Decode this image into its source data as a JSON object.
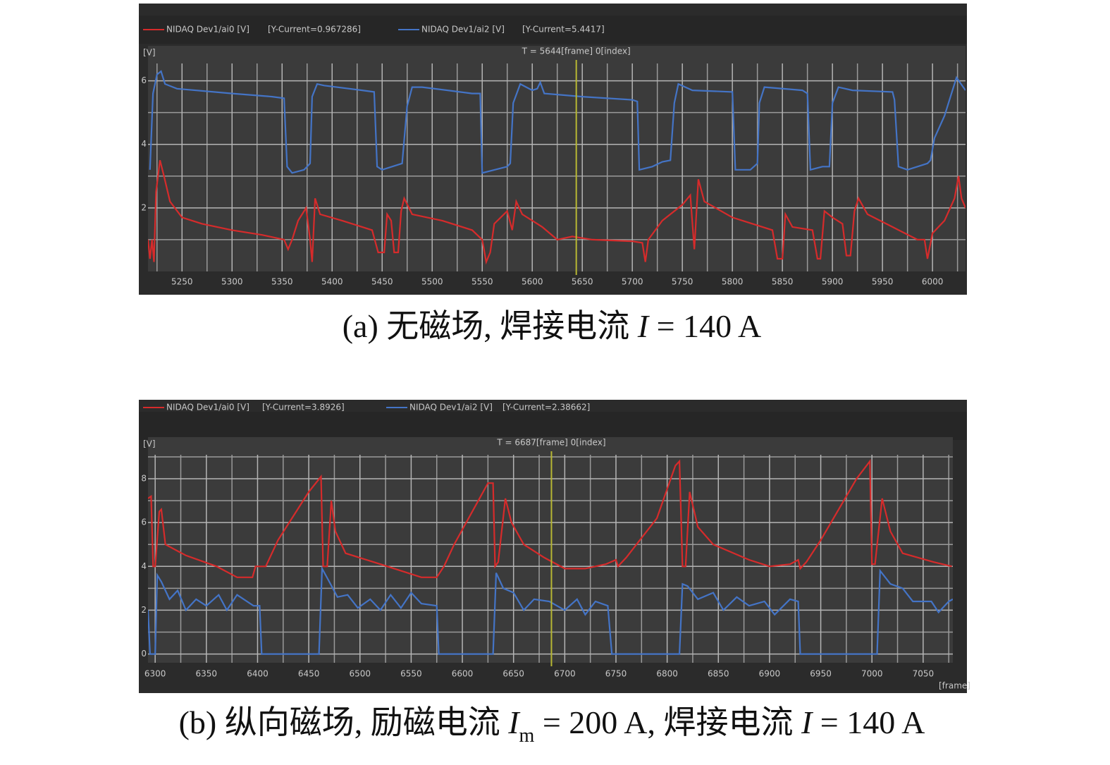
{
  "chart_data": [
    {
      "type": "line",
      "y_label": "[V]",
      "cursor": {
        "x": 5644,
        "label": "T = 5644[frame] 0[index]",
        "color": "#b7b733"
      },
      "xlim": [
        5216,
        6033
      ],
      "ylim": [
        0,
        7.1
      ],
      "xticks": [
        5250,
        5300,
        5350,
        5400,
        5450,
        5500,
        5550,
        5600,
        5650,
        5700,
        5750,
        5800,
        5850,
        5900,
        5950,
        6000
      ],
      "minor_xticks": [
        5225,
        5275,
        5325,
        5375,
        5425,
        5475,
        5525,
        5575,
        5625,
        5675,
        5725,
        5775,
        5825,
        5875,
        5925,
        5975,
        6025
      ],
      "yticks": [
        2,
        4,
        6
      ],
      "minor_yticks": [
        1,
        3,
        5
      ],
      "grid": true,
      "series": [
        {
          "name": "NIDAQ Dev1/ai0 [V]",
          "readout": "[Y-Current=0.967286]",
          "color": "#d62b2b",
          "x": [
            5216,
            5218,
            5220,
            5222,
            5224,
            5228,
            5232,
            5238,
            5250,
            5270,
            5300,
            5330,
            5352,
            5356,
            5360,
            5366,
            5374,
            5378,
            5380,
            5383,
            5388,
            5410,
            5440,
            5446,
            5452,
            5455,
            5459,
            5462,
            5466,
            5469,
            5472,
            5480,
            5510,
            5540,
            5550,
            5554,
            5558,
            5562,
            5575,
            5580,
            5584,
            5590,
            5610,
            5625,
            5640,
            5660,
            5700,
            5710,
            5713,
            5716,
            5730,
            5750,
            5758,
            5762,
            5766,
            5772,
            5800,
            5840,
            5845,
            5850,
            5853,
            5860,
            5880,
            5885,
            5888,
            5892,
            5900,
            5910,
            5914,
            5918,
            5922,
            5926,
            5935,
            5960,
            5985,
            5992,
            5995,
            6000,
            6012,
            6022,
            6026,
            6029,
            6033
          ],
          "values": [
            1.0,
            0.4,
            1.0,
            0.3,
            2.5,
            3.5,
            3.0,
            2.2,
            1.7,
            1.5,
            1.3,
            1.15,
            1.0,
            0.7,
            1.0,
            1.6,
            2.0,
            1.0,
            0.3,
            2.3,
            1.8,
            1.6,
            1.3,
            0.6,
            0.6,
            1.8,
            1.6,
            0.6,
            0.6,
            1.9,
            2.3,
            1.8,
            1.6,
            1.3,
            1.0,
            0.3,
            0.6,
            1.5,
            1.9,
            1.3,
            2.2,
            1.8,
            1.4,
            1.0,
            1.1,
            1.0,
            0.95,
            0.9,
            0.3,
            1.0,
            1.6,
            2.1,
            2.4,
            0.7,
            2.9,
            2.2,
            1.7,
            1.3,
            0.4,
            0.4,
            1.8,
            1.4,
            1.3,
            0.4,
            0.4,
            1.9,
            1.7,
            1.5,
            0.5,
            0.5,
            1.9,
            2.3,
            1.8,
            1.4,
            1.0,
            1.0,
            0.4,
            1.2,
            1.6,
            2.3,
            3.0,
            2.3,
            2.0
          ]
        },
        {
          "name": "NIDAQ Dev1/ai2 [V]",
          "readout": "[Y-Current=5.4417]",
          "color": "#4474c6",
          "x": [
            5218,
            5221,
            5225,
            5229,
            5233,
            5245,
            5300,
            5340,
            5352,
            5355,
            5360,
            5372,
            5378,
            5380,
            5385,
            5392,
            5430,
            5442,
            5445,
            5450,
            5470,
            5475,
            5480,
            5490,
            5540,
            5548,
            5550,
            5575,
            5578,
            5581,
            5588,
            5600,
            5605,
            5608,
            5612,
            5650,
            5700,
            5705,
            5707,
            5720,
            5730,
            5738,
            5742,
            5746,
            5760,
            5800,
            5803,
            5818,
            5825,
            5827,
            5832,
            5870,
            5875,
            5878,
            5890,
            5897,
            5900,
            5906,
            5920,
            5960,
            5962,
            5966,
            5975,
            5995,
            5998,
            6002,
            6012,
            6020,
            6024,
            6033
          ],
          "values": [
            3.2,
            5.6,
            6.2,
            6.3,
            5.9,
            5.75,
            5.6,
            5.5,
            5.45,
            3.3,
            3.1,
            3.2,
            3.4,
            5.5,
            5.9,
            5.85,
            5.7,
            5.65,
            3.3,
            3.2,
            3.4,
            5.2,
            5.8,
            5.8,
            5.6,
            5.6,
            3.1,
            3.3,
            3.4,
            5.3,
            5.9,
            5.7,
            5.75,
            5.95,
            5.6,
            5.5,
            5.4,
            5.35,
            3.2,
            3.3,
            3.45,
            3.5,
            5.3,
            5.9,
            5.7,
            5.65,
            3.2,
            3.2,
            3.4,
            5.3,
            5.8,
            5.7,
            5.6,
            3.2,
            3.3,
            3.3,
            5.3,
            5.8,
            5.7,
            5.65,
            5.4,
            3.3,
            3.2,
            3.4,
            3.5,
            4.2,
            4.9,
            5.7,
            6.1,
            5.7
          ]
        }
      ],
      "caption": [
        {
          "text": "(a) 无磁场, 焊接电流 "
        },
        {
          "text": "I",
          "italic": true
        },
        {
          "text": " = 140 A"
        }
      ]
    },
    {
      "type": "line",
      "y_label": "[V]",
      "x_label": "[frame]",
      "cursor": {
        "x": 6687,
        "label": "T = 6687[frame] 0[index]",
        "color": "#b7b733"
      },
      "xlim": [
        6293,
        7079
      ],
      "ylim": [
        -0.4,
        9.9
      ],
      "xticks": [
        6300,
        6350,
        6400,
        6450,
        6500,
        6550,
        6600,
        6650,
        6700,
        6750,
        6800,
        6850,
        6900,
        6950,
        7000,
        7050
      ],
      "minor_xticks": [
        6325,
        6375,
        6425,
        6475,
        6525,
        6575,
        6625,
        6675,
        6725,
        6775,
        6825,
        6875,
        6925,
        6975,
        7025,
        7075
      ],
      "yticks": [
        0,
        2,
        4,
        6,
        8
      ],
      "minor_yticks": [
        1,
        3,
        5,
        7,
        9
      ],
      "grid": true,
      "series": [
        {
          "name": "NIDAQ Dev1/ai0 [V]",
          "readout": "[Y-Current=3.8926]",
          "color": "#d62b2b",
          "x": [
            6293,
            6296,
            6298,
            6300,
            6304,
            6306,
            6310,
            6330,
            6360,
            6380,
            6395,
            6398,
            6408,
            6420,
            6450,
            6462,
            6464,
            6468,
            6472,
            6476,
            6486,
            6520,
            6560,
            6575,
            6582,
            6592,
            6625,
            6630,
            6632,
            6635,
            6642,
            6648,
            6660,
            6680,
            6700,
            6720,
            6740,
            6750,
            6752,
            6760,
            6790,
            6808,
            6812,
            6815,
            6818,
            6822,
            6830,
            6845,
            6880,
            6900,
            6920,
            6928,
            6930,
            6936,
            6950,
            6985,
            6998,
            7000,
            7003,
            7010,
            7018,
            7030,
            7060,
            7078
          ],
          "values": [
            7.1,
            7.2,
            4.0,
            4.0,
            6.5,
            6.6,
            5.0,
            4.5,
            4.0,
            3.5,
            3.5,
            4.0,
            4.0,
            5.2,
            7.4,
            8.1,
            4.0,
            4.0,
            7.0,
            5.6,
            4.6,
            4.1,
            3.5,
            3.5,
            4.0,
            5.0,
            7.8,
            7.8,
            4.0,
            4.2,
            7.1,
            6.0,
            5.0,
            4.4,
            3.9,
            3.9,
            4.1,
            4.3,
            4.0,
            4.4,
            6.2,
            8.6,
            8.8,
            4.0,
            4.0,
            7.4,
            5.8,
            5.0,
            4.3,
            4.0,
            4.1,
            4.3,
            3.9,
            4.2,
            5.2,
            8.0,
            8.8,
            4.1,
            4.1,
            7.1,
            5.6,
            4.6,
            4.2,
            4.0
          ]
        },
        {
          "name": "NIDAQ Dev1/ai2 [V]",
          "readout": "[Y-Current=2.38662]",
          "color": "#4474c6",
          "x": [
            6293,
            6295,
            6300,
            6302,
            6306,
            6314,
            6322,
            6330,
            6340,
            6350,
            6362,
            6370,
            6380,
            6396,
            6402,
            6404,
            6460,
            6463,
            6470,
            6478,
            6488,
            6498,
            6510,
            6520,
            6530,
            6540,
            6550,
            6560,
            6575,
            6577,
            6630,
            6633,
            6640,
            6650,
            6660,
            6670,
            6685,
            6700,
            6712,
            6720,
            6730,
            6742,
            6746,
            6812,
            6815,
            6820,
            6830,
            6845,
            6855,
            6868,
            6880,
            6895,
            6905,
            6920,
            6928,
            6930,
            7005,
            7008,
            7018,
            7030,
            7040,
            7058,
            7065,
            7075,
            7079
          ],
          "values": [
            2.0,
            0.0,
            0.0,
            3.6,
            3.3,
            2.5,
            2.9,
            2.0,
            2.5,
            2.2,
            2.7,
            2.0,
            2.7,
            2.2,
            2.2,
            0.0,
            0.0,
            3.9,
            3.3,
            2.6,
            2.7,
            2.1,
            2.5,
            2.0,
            2.7,
            2.1,
            2.8,
            2.3,
            2.2,
            0.0,
            0.0,
            3.7,
            3.0,
            2.8,
            2.0,
            2.5,
            2.4,
            2.0,
            2.5,
            1.8,
            2.4,
            2.2,
            0.0,
            0.0,
            3.2,
            3.1,
            2.5,
            2.8,
            2.0,
            2.6,
            2.2,
            2.4,
            1.8,
            2.5,
            2.4,
            0.0,
            0.0,
            3.8,
            3.2,
            3.0,
            2.4,
            2.4,
            1.9,
            2.4,
            2.5
          ]
        }
      ],
      "caption": [
        {
          "text": "(b) 纵向磁场, 励磁电流 "
        },
        {
          "text": "I",
          "italic": true
        },
        {
          "text": "m",
          "sub": true
        },
        {
          "text": " = 200 A, 焊接电流 "
        },
        {
          "text": "I",
          "italic": true
        },
        {
          "text": " = 140 A"
        }
      ]
    }
  ]
}
